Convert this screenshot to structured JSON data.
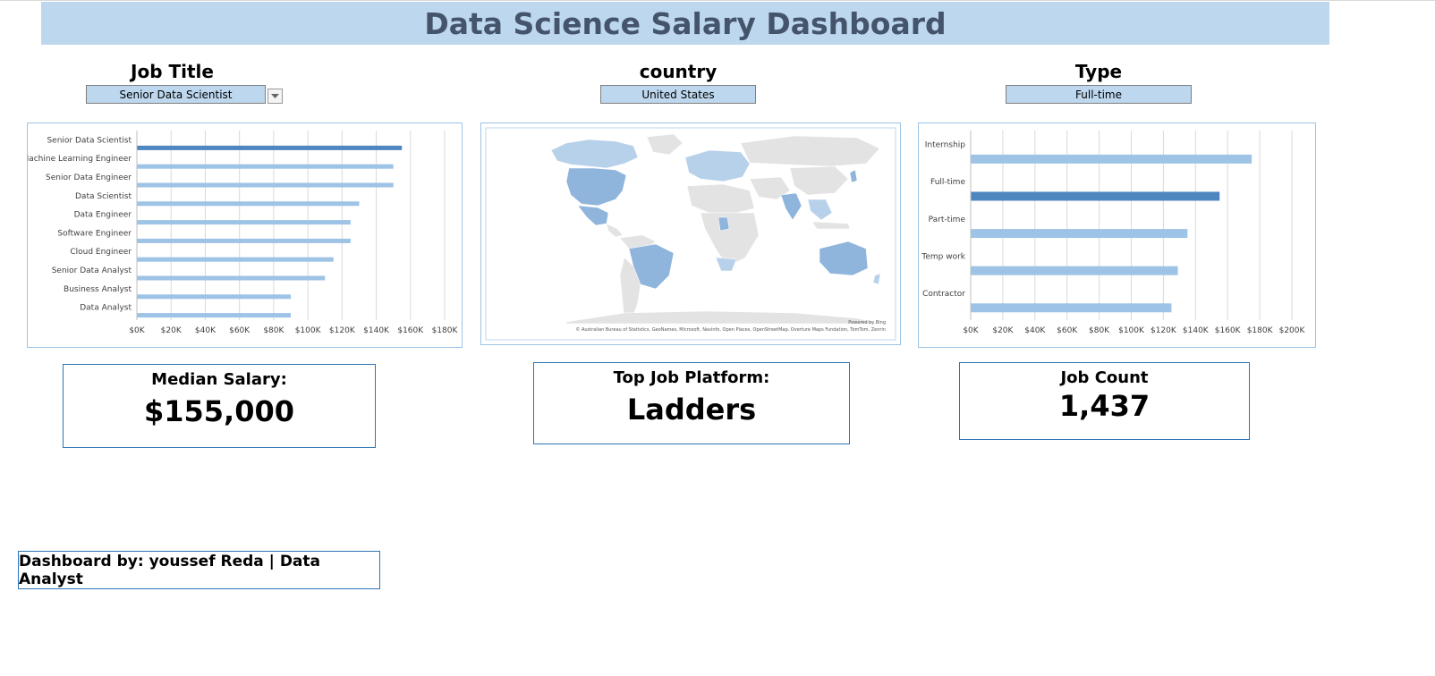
{
  "header": {
    "title": "Data Science Salary Dashboard"
  },
  "filters": {
    "job_title": {
      "label": "Job Title",
      "value": "Senior Data Scientist"
    },
    "country": {
      "label": "country",
      "value": "United States"
    },
    "type": {
      "label": "Type",
      "value": "Full-time"
    }
  },
  "colors": {
    "banner": "#bdd7ee",
    "title_text": "#44546a",
    "bar_light": "#9dc3e6",
    "bar_highlight": "#4e86bf",
    "map_highlight": "#8fb5dc",
    "map_land": "#e3e3e3"
  },
  "charts": {
    "job_title_salary": {
      "chart_data": {
        "type": "bar",
        "orientation": "horizontal",
        "categories": [
          "Senior Data Scientist",
          "Machine Learning Engineer",
          "Senior Data Engineer",
          "Data Scientist",
          "Data Engineer",
          "Software Engineer",
          "Cloud Engineer",
          "Senior Data Analyst",
          "Business Analyst",
          "Data Analyst"
        ],
        "values": [
          155000,
          150000,
          150000,
          130000,
          125000,
          125000,
          115000,
          110000,
          90000,
          90000
        ],
        "highlight": "Senior Data Scientist",
        "xticks": [
          "$0K",
          "$20K",
          "$40K",
          "$60K",
          "$80K",
          "$100K",
          "$120K",
          "$140K",
          "$160K",
          "$180K"
        ],
        "xlim": [
          0,
          180000
        ],
        "grid": true
      }
    },
    "type_salary": {
      "chart_data": {
        "type": "bar",
        "orientation": "horizontal",
        "categories": [
          "Internship",
          "Full-time",
          "Part-time",
          "Temp work",
          "Contractor"
        ],
        "values": [
          175000,
          155000,
          135000,
          129000,
          125000
        ],
        "highlight": "Full-time",
        "xticks": [
          "$0K",
          "$20K",
          "$40K",
          "$60K",
          "$80K",
          "$100K",
          "$120K",
          "$140K",
          "$160K",
          "$180K",
          "$200K"
        ],
        "xlim": [
          0,
          200000
        ],
        "grid": true
      }
    },
    "map": {
      "attribution_top": "Powered by Bing",
      "attribution": "© Australian Bureau of Statistics, GeoNames, Microsoft, Navinfo, Open Places, OpenStreetMap, Overture Maps Fundation, TomTom, Zenrin"
    }
  },
  "kpis": {
    "median_salary": {
      "label": "Median Salary:",
      "value": "$155,000"
    },
    "top_platform": {
      "label": "Top Job Platform:",
      "value": "Ladders"
    },
    "job_count": {
      "label": "Job Count",
      "value": "1,437"
    }
  },
  "footer": {
    "credit": "Dashboard by:  youssef Reda | Data Analyst"
  }
}
